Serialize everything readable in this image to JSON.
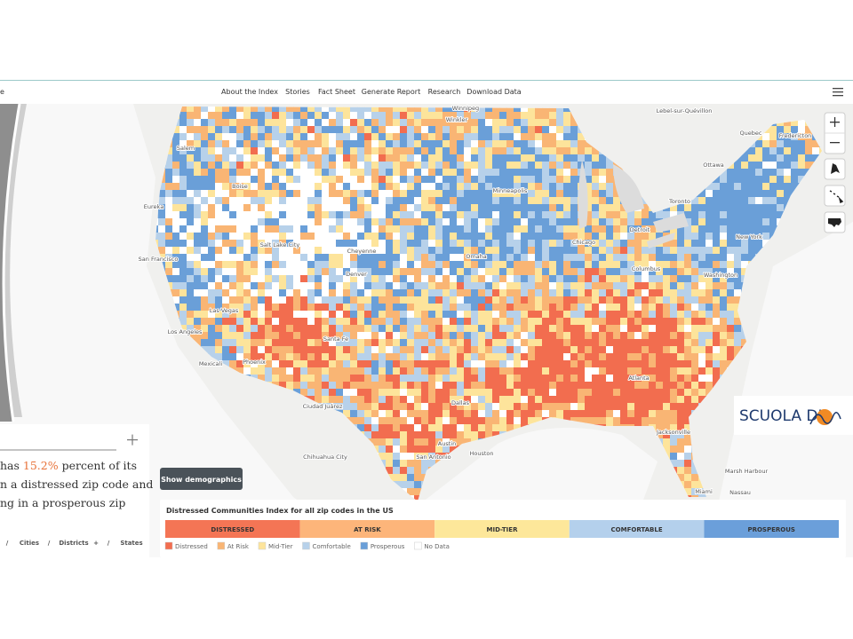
{
  "nav": {
    "brand_fragment": "e",
    "links": [
      "About the Index",
      "Stories",
      "Fact Sheet",
      "Generate Report",
      "Research",
      "Download Data"
    ]
  },
  "map": {
    "labels": [
      "Winnipeg",
      "Winkler",
      "Lebel-sur-Quévillon",
      "Quebec",
      "Fredericton",
      "Ottawa",
      "Toronto",
      "Minneapolis",
      "Detroit",
      "Chicago",
      "New York",
      "Columbus",
      "Washington",
      "Salem",
      "Boise",
      "Eureka",
      "Salt Lake City",
      "Cheyenne",
      "Denver",
      "Omaha",
      "San Francisco",
      "Las Vegas",
      "Los Angeles",
      "Phoenix",
      "Mexicali",
      "Santa Fe",
      "Ciudad Juárez",
      "Chihuahua City",
      "Dallas",
      "Austin",
      "San Antonio",
      "Houston",
      "Atlanta",
      "Jacksonville",
      "Miami",
      "Nassau",
      "Marsh Harbour"
    ]
  },
  "panel": {
    "line1_before": "has",
    "highlight": "15.2%",
    "line1_after": "percent of its",
    "line2": "n a distressed zip code and",
    "line3": "ng in a prosperous zip",
    "breadcrumb": [
      "/",
      "Cities",
      "/",
      "Districts",
      "+",
      "/",
      "States"
    ]
  },
  "button": "Show demographics",
  "logo": "SCUOLA DI",
  "legend": {
    "title": "Distressed Communities Index for all zip codes in the US",
    "bar": [
      {
        "label": "DISTRESSED",
        "color": "#f47555"
      },
      {
        "label": "AT RISK",
        "color": "#fdb57a"
      },
      {
        "label": "MID-TIER",
        "color": "#fde79a"
      },
      {
        "label": "COMFORTABLE",
        "color": "#b4d0ec"
      },
      {
        "label": "PROSPEROUS",
        "color": "#6b9fda"
      }
    ],
    "items": [
      {
        "label": "Distressed",
        "color": "#f26d4f"
      },
      {
        "label": "At Risk",
        "color": "#f9b574"
      },
      {
        "label": "Mid-Tier",
        "color": "#fde49b"
      },
      {
        "label": "Comfortable",
        "color": "#b7d1ea"
      },
      {
        "label": "Prosperous",
        "color": "#6a9fd8"
      },
      {
        "label": "No Data",
        "color": "#ffffff"
      }
    ]
  }
}
